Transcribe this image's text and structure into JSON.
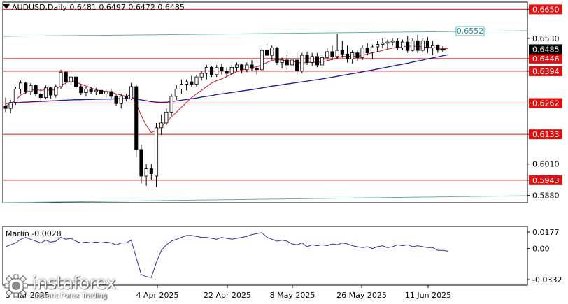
{
  "header": {
    "symbol": "AUDUSD,Daily",
    "ohlc": "0.6481 0.6497 0.6472 0.6485"
  },
  "oscillator": {
    "label": "Marlin -0.0028",
    "axis_labels": [
      "0.0177",
      "0.00",
      "-0.0332"
    ]
  },
  "logo": {
    "name": "instaforex",
    "tagline": "Instant Forex Trading"
  },
  "colors": {
    "level_line": "#e01010",
    "level_label_bg": "#e01010",
    "price_label_bg": "#000000",
    "channel_line": "#5fb3b3",
    "ma_blue": "#1a1aa0",
    "ma_red": "#d01020",
    "oscillator": "#3a2aa0",
    "bull_candle": "#ffffff",
    "bear_candle": "#000000"
  },
  "chart_data": {
    "type": "candlestick",
    "title": "AUDUSD,Daily",
    "x_ticks": [
      "3 Mar 2025",
      "4 Apr 2025",
      "22 Apr 2025",
      "8 May 2025",
      "26 May 2025",
      "11 Jun 2025"
    ],
    "y_ticks": [
      0.665,
      0.653,
      0.6394,
      0.6262,
      0.6133,
      0.601,
      0.5943,
      0.588
    ],
    "y_axis_labels": [
      "0.6650",
      "0.6530",
      "0.6446",
      "0.6394",
      "0.6262",
      "0.6133",
      "0.6010",
      "0.5943",
      "0.5880"
    ],
    "ylim": [
      0.585,
      0.668
    ],
    "current_price": "0.6485",
    "horizontal_levels": [
      "0.6650",
      "0.6446",
      "0.6394",
      "0.6262",
      "0.6133",
      "0.5943"
    ],
    "channel_label": "0.6552",
    "candles": [
      [
        0.625,
        0.6285,
        0.6225,
        0.624
      ],
      [
        0.624,
        0.6275,
        0.622,
        0.6265
      ],
      [
        0.6265,
        0.633,
        0.6255,
        0.632
      ],
      [
        0.632,
        0.6355,
        0.63,
        0.6345
      ],
      [
        0.6345,
        0.635,
        0.63,
        0.631
      ],
      [
        0.631,
        0.6345,
        0.6295,
        0.6335
      ],
      [
        0.6335,
        0.634,
        0.629,
        0.63
      ],
      [
        0.63,
        0.632,
        0.627,
        0.6285
      ],
      [
        0.6285,
        0.6335,
        0.628,
        0.6325
      ],
      [
        0.6325,
        0.633,
        0.628,
        0.6295
      ],
      [
        0.6295,
        0.634,
        0.6285,
        0.633
      ],
      [
        0.633,
        0.64,
        0.632,
        0.639
      ],
      [
        0.639,
        0.6395,
        0.634,
        0.635
      ],
      [
        0.635,
        0.638,
        0.634,
        0.637
      ],
      [
        0.637,
        0.6375,
        0.632,
        0.633
      ],
      [
        0.633,
        0.634,
        0.6295,
        0.6305
      ],
      [
        0.6305,
        0.633,
        0.629,
        0.632
      ],
      [
        0.632,
        0.633,
        0.63,
        0.631
      ],
      [
        0.631,
        0.6325,
        0.6295,
        0.6315
      ],
      [
        0.6315,
        0.632,
        0.629,
        0.63
      ],
      [
        0.63,
        0.632,
        0.6285,
        0.631
      ],
      [
        0.631,
        0.632,
        0.628,
        0.629
      ],
      [
        0.629,
        0.63,
        0.625,
        0.626
      ],
      [
        0.626,
        0.63,
        0.624,
        0.629
      ],
      [
        0.629,
        0.63,
        0.627,
        0.628
      ],
      [
        0.628,
        0.6345,
        0.6275,
        0.633
      ],
      [
        0.633,
        0.634,
        0.604,
        0.607
      ],
      [
        0.607,
        0.609,
        0.593,
        0.596
      ],
      [
        0.596,
        0.601,
        0.592,
        0.599
      ],
      [
        0.599,
        0.601,
        0.5945,
        0.597
      ],
      [
        0.596,
        0.618,
        0.5915,
        0.616
      ],
      [
        0.616,
        0.6215,
        0.613,
        0.618
      ],
      [
        0.618,
        0.624,
        0.617,
        0.6225
      ],
      [
        0.6225,
        0.63,
        0.621,
        0.629
      ],
      [
        0.629,
        0.6335,
        0.6275,
        0.632
      ],
      [
        0.632,
        0.636,
        0.63,
        0.634
      ],
      [
        0.634,
        0.636,
        0.6315,
        0.635
      ],
      [
        0.635,
        0.6375,
        0.633,
        0.634
      ],
      [
        0.634,
        0.638,
        0.633,
        0.637
      ],
      [
        0.637,
        0.6395,
        0.6355,
        0.6385
      ],
      [
        0.6385,
        0.642,
        0.636,
        0.641
      ],
      [
        0.641,
        0.6415,
        0.637,
        0.638
      ],
      [
        0.638,
        0.642,
        0.637,
        0.641
      ],
      [
        0.641,
        0.6425,
        0.638,
        0.6395
      ],
      [
        0.6395,
        0.641,
        0.637,
        0.6385
      ],
      [
        0.6385,
        0.642,
        0.638,
        0.641
      ],
      [
        0.641,
        0.643,
        0.6395,
        0.642
      ],
      [
        0.642,
        0.6425,
        0.6385,
        0.64
      ],
      [
        0.64,
        0.643,
        0.639,
        0.642
      ],
      [
        0.642,
        0.644,
        0.6395,
        0.6405
      ],
      [
        0.6405,
        0.6415,
        0.638,
        0.64
      ],
      [
        0.64,
        0.649,
        0.6395,
        0.648
      ],
      [
        0.648,
        0.6505,
        0.644,
        0.646
      ],
      [
        0.646,
        0.65,
        0.644,
        0.649
      ],
      [
        0.649,
        0.6495,
        0.642,
        0.643
      ],
      [
        0.643,
        0.645,
        0.6405,
        0.644
      ],
      [
        0.644,
        0.646,
        0.64,
        0.642
      ],
      [
        0.642,
        0.645,
        0.64,
        0.644
      ],
      [
        0.644,
        0.647,
        0.638,
        0.6395
      ],
      [
        0.6395,
        0.647,
        0.6385,
        0.646
      ],
      [
        0.646,
        0.6475,
        0.642,
        0.643
      ],
      [
        0.643,
        0.647,
        0.6415,
        0.6455
      ],
      [
        0.6455,
        0.647,
        0.641,
        0.642
      ],
      [
        0.642,
        0.646,
        0.641,
        0.645
      ],
      [
        0.645,
        0.649,
        0.6435,
        0.6475
      ],
      [
        0.6475,
        0.65,
        0.644,
        0.6455
      ],
      [
        0.6455,
        0.655,
        0.6445,
        0.648
      ],
      [
        0.648,
        0.652,
        0.645,
        0.6465
      ],
      [
        0.6465,
        0.65,
        0.643,
        0.6445
      ],
      [
        0.6445,
        0.648,
        0.6425,
        0.647
      ],
      [
        0.647,
        0.648,
        0.6435,
        0.645
      ],
      [
        0.645,
        0.65,
        0.644,
        0.649
      ],
      [
        0.649,
        0.651,
        0.646,
        0.647
      ],
      [
        0.647,
        0.6505,
        0.6445,
        0.6495
      ],
      [
        0.6495,
        0.652,
        0.6475,
        0.6505
      ],
      [
        0.6505,
        0.653,
        0.649,
        0.651
      ],
      [
        0.651,
        0.6525,
        0.6485,
        0.6515
      ],
      [
        0.6515,
        0.653,
        0.65,
        0.652
      ],
      [
        0.652,
        0.653,
        0.648,
        0.649
      ],
      [
        0.649,
        0.6525,
        0.648,
        0.6515
      ],
      [
        0.6515,
        0.654,
        0.647,
        0.648
      ],
      [
        0.648,
        0.653,
        0.6475,
        0.652
      ],
      [
        0.652,
        0.6545,
        0.647,
        0.648
      ],
      [
        0.648,
        0.653,
        0.647,
        0.652
      ],
      [
        0.652,
        0.6535,
        0.647,
        0.649
      ],
      [
        0.649,
        0.652,
        0.646,
        0.65
      ],
      [
        0.65,
        0.6505,
        0.647,
        0.6481
      ],
      [
        0.6481,
        0.6497,
        0.6472,
        0.6485
      ]
    ],
    "ma_blue": [
      0.626,
      0.6262,
      0.6263,
      0.6265,
      0.6266,
      0.6267,
      0.6268,
      0.6269,
      0.627,
      0.6271,
      0.6272,
      0.6273,
      0.6274,
      0.6275,
      0.6276,
      0.6276,
      0.6277,
      0.6277,
      0.6278,
      0.6278,
      0.6279,
      0.6279,
      0.628,
      0.628,
      0.628,
      0.6281,
      0.6279,
      0.6275,
      0.6272,
      0.6268,
      0.6266,
      0.6265,
      0.6266,
      0.6268,
      0.6271,
      0.6274,
      0.6277,
      0.628,
      0.6283,
      0.6287,
      0.629,
      0.6293,
      0.6297,
      0.63,
      0.6303,
      0.6306,
      0.6309,
      0.6312,
      0.6315,
      0.6318,
      0.6321,
      0.6325,
      0.6328,
      0.6332,
      0.6335,
      0.6338,
      0.6341,
      0.6344,
      0.6347,
      0.635,
      0.6353,
      0.6356,
      0.6359,
      0.6362,
      0.6366,
      0.6369,
      0.6373,
      0.6377,
      0.638,
      0.6384,
      0.6387,
      0.6391,
      0.6395,
      0.6399,
      0.6403,
      0.6407,
      0.6411,
      0.6415,
      0.6419,
      0.6423,
      0.6427,
      0.6432,
      0.6436,
      0.644,
      0.6445,
      0.6449,
      0.6453,
      0.6458,
      0.6462
    ],
    "ma_red": [
      0.625,
      0.626,
      0.6275,
      0.6295,
      0.6305,
      0.6315,
      0.6318,
      0.6315,
      0.6317,
      0.6315,
      0.6318,
      0.6335,
      0.6345,
      0.6355,
      0.635,
      0.634,
      0.6333,
      0.6325,
      0.6318,
      0.6312,
      0.631,
      0.6308,
      0.63,
      0.6295,
      0.629,
      0.6298,
      0.626,
      0.621,
      0.617,
      0.614,
      0.615,
      0.6165,
      0.6185,
      0.6205,
      0.6225,
      0.6245,
      0.6265,
      0.6285,
      0.63,
      0.6315,
      0.633,
      0.6345,
      0.6355,
      0.6362,
      0.6372,
      0.6382,
      0.6392,
      0.6398,
      0.6405,
      0.641,
      0.6412,
      0.642,
      0.643,
      0.6438,
      0.6442,
      0.644,
      0.6438,
      0.6435,
      0.643,
      0.6428,
      0.643,
      0.6432,
      0.643,
      0.6432,
      0.6438,
      0.6442,
      0.645,
      0.6455,
      0.6456,
      0.6455,
      0.6455,
      0.646,
      0.6465,
      0.647,
      0.6475,
      0.648,
      0.6485,
      0.649,
      0.6493,
      0.6495,
      0.6498,
      0.6497,
      0.6497,
      0.6495,
      0.6493,
      0.6492,
      0.649,
      0.6488,
      0.6487
    ],
    "marlin": [
      0.002,
      0.004,
      0.006,
      0.01,
      0.012,
      0.01,
      0.008,
      0.006,
      0.009,
      0.007,
      0.008,
      0.012,
      0.01,
      0.011,
      0.008,
      0.006,
      0.007,
      0.006,
      0.007,
      0.006,
      0.007,
      0.006,
      0.004,
      0.006,
      0.006,
      0.009,
      -0.01,
      -0.028,
      -0.03,
      -0.031,
      -0.015,
      -0.002,
      0.004,
      0.008,
      0.01,
      0.012,
      0.014,
      0.014,
      0.013,
      0.012,
      0.012,
      0.011,
      0.01,
      0.012,
      0.011,
      0.01,
      0.011,
      0.012,
      0.013,
      0.015,
      0.016,
      0.017,
      0.012,
      0.01,
      0.008,
      0.009,
      0.008,
      0.005,
      0.004,
      0.006,
      0.002,
      0.004,
      0.003,
      0.004,
      0.003,
      0.005,
      0.004,
      0.006,
      0.005,
      0.003,
      0.002,
      0.001,
      0.002,
      0.0,
      0.002,
      0.003,
      0.001,
      0.002,
      0.004,
      0.003,
      0.004,
      0.002,
      0.003,
      0.002,
      0.001,
      0.001,
      -0.002,
      -0.002,
      -0.0028
    ]
  }
}
